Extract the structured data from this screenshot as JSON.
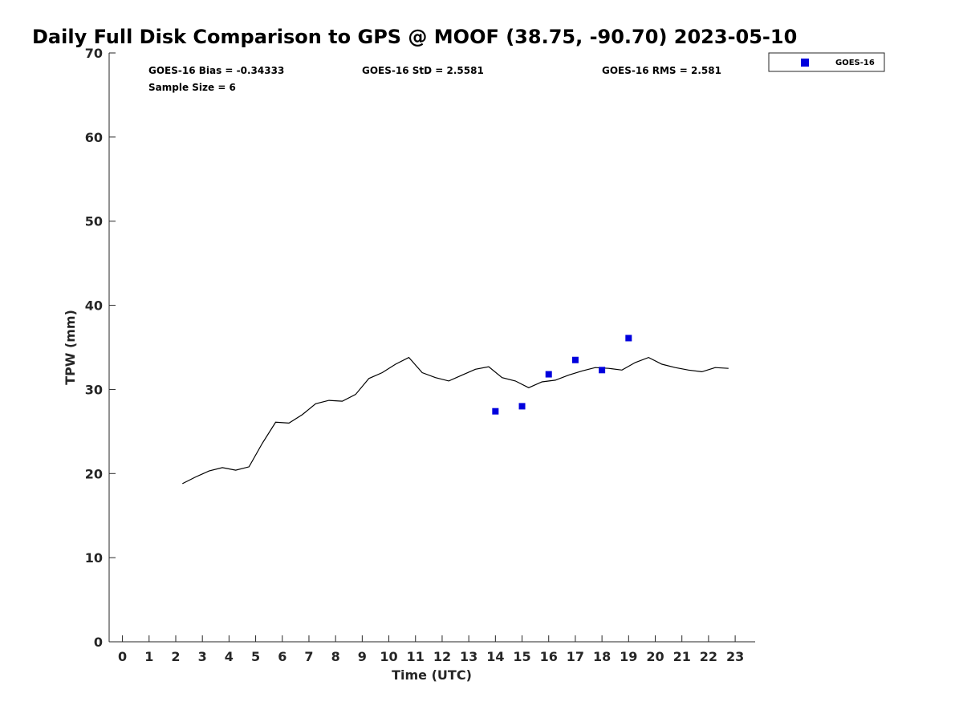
{
  "chart_data": {
    "type": "scatter",
    "title": "Daily Full Disk Comparison to GPS @ MOOF (38.75, -90.70) 2023-05-10",
    "xlabel": "Time (UTC)",
    "ylabel": "TPW (mm)",
    "xlim": [
      -0.5,
      23.75
    ],
    "ylim": [
      0,
      70
    ],
    "x_ticks": [
      0,
      1,
      2,
      3,
      4,
      5,
      6,
      7,
      8,
      9,
      10,
      11,
      12,
      13,
      14,
      15,
      16,
      17,
      18,
      19,
      20,
      21,
      22,
      23
    ],
    "y_ticks": [
      0,
      10,
      20,
      30,
      40,
      50,
      60,
      70
    ],
    "grid": false,
    "legend_position": "top-right-outside",
    "stats": {
      "bias": "GOES-16 Bias = -0.34333",
      "std": "GOES-16 StD = 2.5581",
      "rms": "GOES-16 RMS = 2.581",
      "sample": "Sample Size = 6"
    },
    "series": [
      {
        "name": "GOES-16",
        "kind": "scatter",
        "marker": "square",
        "color": "#0000dd",
        "x": [
          14,
          15,
          16,
          17,
          18,
          19
        ],
        "y": [
          27.4,
          28.0,
          31.8,
          33.5,
          32.3,
          36.1
        ]
      },
      {
        "kind": "line",
        "color": "#000000",
        "x": [
          2.25,
          2.75,
          3.25,
          3.75,
          4.25,
          4.75,
          5.25,
          5.75,
          6.25,
          6.75,
          7.25,
          7.75,
          8.25,
          8.75,
          9.25,
          9.75,
          10.25,
          10.75,
          11.25,
          11.75,
          12.25,
          12.75,
          13.25,
          13.75,
          14.25,
          14.75,
          15.25,
          15.75,
          16.25,
          16.75,
          17.25,
          17.75,
          18.25,
          18.75,
          19.25,
          19.75,
          20.25,
          20.75,
          21.25,
          21.75,
          22.25,
          22.75
        ],
        "y": [
          18.8,
          19.6,
          20.3,
          20.7,
          20.4,
          20.8,
          23.6,
          26.1,
          26.0,
          27.0,
          28.3,
          28.7,
          28.6,
          29.4,
          31.3,
          32.0,
          33.0,
          33.8,
          32.0,
          31.4,
          31.0,
          31.7,
          32.4,
          32.7,
          31.4,
          31.0,
          30.2,
          30.9,
          31.1,
          31.7,
          32.2,
          32.6,
          32.5,
          32.3,
          33.2,
          33.8,
          33.0,
          32.6,
          32.3,
          32.1,
          32.6,
          32.5
        ]
      }
    ]
  }
}
